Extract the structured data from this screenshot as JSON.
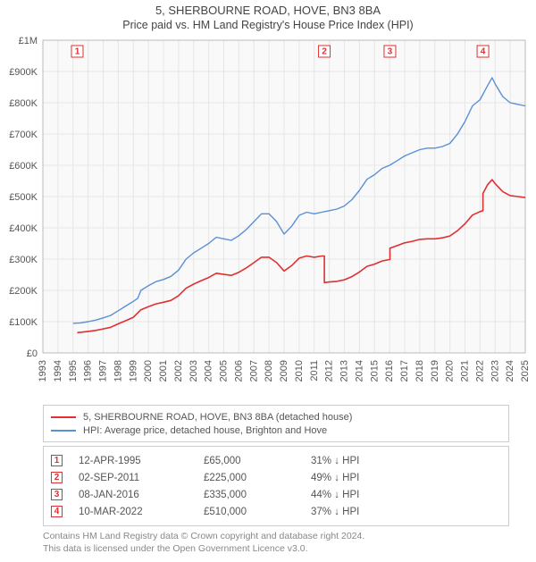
{
  "title_line1": "5, SHERBOURNE ROAD, HOVE, BN3 8BA",
  "title_line2": "Price paid vs. HM Land Registry's House Price Index (HPI)",
  "chart": {
    "background": "#f9f9f9",
    "grid_color": "#e6e6e6",
    "axis_color": "#bbbbbb",
    "x": {
      "min": 1993,
      "max": 2025,
      "step": 1
    },
    "y": {
      "min": 0,
      "max": 1000000,
      "step": 100000,
      "labels": [
        "£0",
        "£100K",
        "£200K",
        "£300K",
        "£400K",
        "£500K",
        "£600K",
        "£700K",
        "£800K",
        "£900K",
        "£1M"
      ]
    },
    "series": [
      {
        "name": "hpi",
        "label": "HPI: Average price, detached house, Brighton and Hove",
        "color": "#5b8fd6",
        "width": 1.4,
        "data": [
          [
            1995.0,
            95000
          ],
          [
            1995.5,
            96000
          ],
          [
            1996.0,
            100000
          ],
          [
            1996.5,
            105000
          ],
          [
            1997.0,
            112000
          ],
          [
            1997.5,
            120000
          ],
          [
            1998.0,
            135000
          ],
          [
            1998.5,
            150000
          ],
          [
            1999.0,
            165000
          ],
          [
            1999.3,
            175000
          ],
          [
            1999.5,
            200000
          ],
          [
            2000.0,
            215000
          ],
          [
            2000.5,
            228000
          ],
          [
            2001.0,
            235000
          ],
          [
            2001.5,
            245000
          ],
          [
            2002.0,
            265000
          ],
          [
            2002.5,
            300000
          ],
          [
            2003.0,
            320000
          ],
          [
            2003.5,
            335000
          ],
          [
            2004.0,
            350000
          ],
          [
            2004.5,
            370000
          ],
          [
            2005.0,
            365000
          ],
          [
            2005.5,
            360000
          ],
          [
            2006.0,
            375000
          ],
          [
            2006.5,
            395000
          ],
          [
            2007.0,
            420000
          ],
          [
            2007.5,
            445000
          ],
          [
            2008.0,
            445000
          ],
          [
            2008.5,
            420000
          ],
          [
            2009.0,
            380000
          ],
          [
            2009.5,
            405000
          ],
          [
            2010.0,
            440000
          ],
          [
            2010.5,
            450000
          ],
          [
            2011.0,
            445000
          ],
          [
            2011.5,
            450000
          ],
          [
            2012.0,
            455000
          ],
          [
            2012.5,
            460000
          ],
          [
            2013.0,
            470000
          ],
          [
            2013.5,
            490000
          ],
          [
            2014.0,
            520000
          ],
          [
            2014.5,
            555000
          ],
          [
            2015.0,
            570000
          ],
          [
            2015.5,
            590000
          ],
          [
            2016.0,
            600000
          ],
          [
            2016.5,
            615000
          ],
          [
            2017.0,
            630000
          ],
          [
            2017.5,
            640000
          ],
          [
            2018.0,
            650000
          ],
          [
            2018.5,
            655000
          ],
          [
            2019.0,
            655000
          ],
          [
            2019.5,
            660000
          ],
          [
            2020.0,
            670000
          ],
          [
            2020.5,
            700000
          ],
          [
            2021.0,
            740000
          ],
          [
            2021.5,
            790000
          ],
          [
            2022.0,
            810000
          ],
          [
            2022.5,
            855000
          ],
          [
            2022.8,
            880000
          ],
          [
            2023.0,
            860000
          ],
          [
            2023.5,
            820000
          ],
          [
            2024.0,
            800000
          ],
          [
            2024.5,
            795000
          ],
          [
            2025.0,
            790000
          ]
        ]
      },
      {
        "name": "price_paid",
        "label": "5, SHERBOURNE ROAD, HOVE, BN3 8BA (detached house)",
        "color": "#e03030",
        "width": 1.6,
        "data": [
          [
            1995.28,
            65000
          ],
          [
            1995.5,
            66000
          ],
          [
            1996.0,
            69000
          ],
          [
            1996.5,
            72000
          ],
          [
            1997.0,
            77000
          ],
          [
            1997.5,
            82000
          ],
          [
            1998.0,
            93000
          ],
          [
            1998.5,
            103000
          ],
          [
            1999.0,
            114000
          ],
          [
            1999.5,
            138000
          ],
          [
            2000.0,
            148000
          ],
          [
            2000.5,
            157000
          ],
          [
            2001.0,
            162000
          ],
          [
            2001.5,
            168000
          ],
          [
            2002.0,
            183000
          ],
          [
            2002.5,
            207000
          ],
          [
            2003.0,
            220000
          ],
          [
            2003.5,
            231000
          ],
          [
            2004.0,
            241000
          ],
          [
            2004.5,
            255000
          ],
          [
            2005.0,
            251000
          ],
          [
            2005.5,
            248000
          ],
          [
            2006.0,
            258000
          ],
          [
            2006.5,
            272000
          ],
          [
            2007.0,
            289000
          ],
          [
            2007.5,
            306000
          ],
          [
            2008.0,
            306000
          ],
          [
            2008.5,
            289000
          ],
          [
            2009.0,
            262000
          ],
          [
            2009.5,
            279000
          ],
          [
            2010.0,
            303000
          ],
          [
            2010.5,
            310000
          ],
          [
            2011.0,
            306000
          ],
          [
            2011.5,
            310000
          ],
          [
            2011.67,
            310000
          ],
          [
            2011.671,
            225000
          ],
          [
            2012.0,
            227000
          ],
          [
            2012.5,
            229000
          ],
          [
            2013.0,
            234000
          ],
          [
            2013.5,
            244000
          ],
          [
            2014.0,
            259000
          ],
          [
            2014.5,
            277000
          ],
          [
            2015.0,
            284000
          ],
          [
            2015.5,
            294000
          ],
          [
            2016.02,
            299000
          ],
          [
            2016.021,
            335000
          ],
          [
            2016.5,
            343000
          ],
          [
            2017.0,
            352000
          ],
          [
            2017.5,
            357000
          ],
          [
            2018.0,
            363000
          ],
          [
            2018.5,
            365000
          ],
          [
            2019.0,
            365000
          ],
          [
            2019.5,
            368000
          ],
          [
            2020.0,
            374000
          ],
          [
            2020.5,
            391000
          ],
          [
            2021.0,
            413000
          ],
          [
            2021.5,
            441000
          ],
          [
            2022.0,
            452000
          ],
          [
            2022.19,
            455000
          ],
          [
            2022.191,
            510000
          ],
          [
            2022.5,
            538000
          ],
          [
            2022.8,
            554000
          ],
          [
            2023.0,
            541000
          ],
          [
            2023.5,
            516000
          ],
          [
            2024.0,
            503000
          ],
          [
            2024.5,
            500000
          ],
          [
            2025.0,
            497000
          ]
        ]
      }
    ],
    "sale_markers": [
      {
        "n": "1",
        "year": 1995.28
      },
      {
        "n": "2",
        "year": 2011.67
      },
      {
        "n": "3",
        "year": 2016.02
      },
      {
        "n": "4",
        "year": 2022.19
      }
    ]
  },
  "legend": [
    {
      "color": "#e03030",
      "text": "5, SHERBOURNE ROAD, HOVE, BN3 8BA (detached house)"
    },
    {
      "color": "#5b8fd6",
      "text": "HPI: Average price, detached house, Brighton and Hove"
    }
  ],
  "sales": [
    {
      "n": "1",
      "date": "12-APR-1995",
      "price": "£65,000",
      "diff": "31% ↓ HPI"
    },
    {
      "n": "2",
      "date": "02-SEP-2011",
      "price": "£225,000",
      "diff": "49% ↓ HPI"
    },
    {
      "n": "3",
      "date": "08-JAN-2016",
      "price": "£335,000",
      "diff": "44% ↓ HPI"
    },
    {
      "n": "4",
      "date": "10-MAR-2022",
      "price": "£510,000",
      "diff": "37% ↓ HPI"
    }
  ],
  "footer_line1": "Contains HM Land Registry data © Crown copyright and database right 2024.",
  "footer_line2": "This data is licensed under the Open Government Licence v3.0."
}
